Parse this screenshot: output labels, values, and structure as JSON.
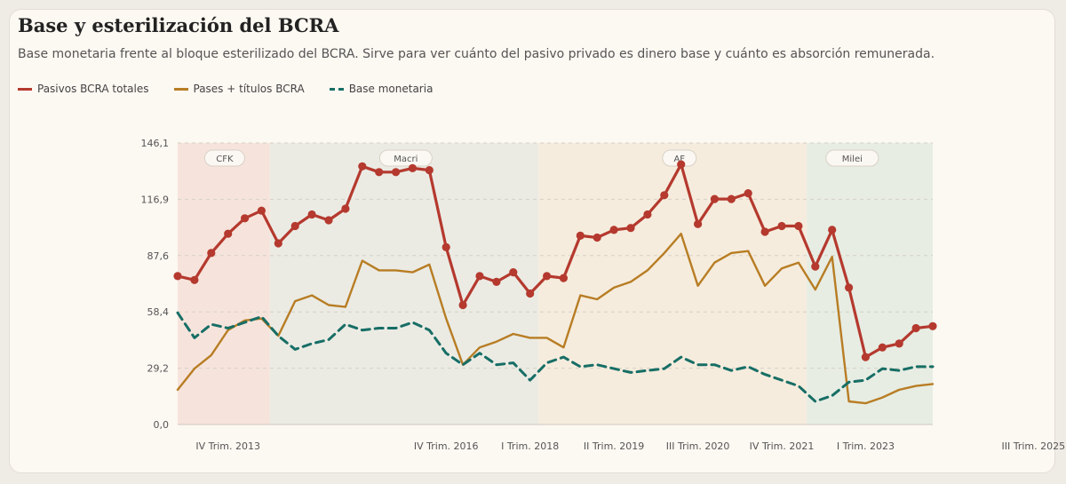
{
  "header": {
    "title": "Base y esterilización del BCRA",
    "subtitle": "Base monetaria frente al bloque esterilizado del BCRA. Sirve para ver cuánto del pasivo privado es dinero base y cuánto es absorción remunerada."
  },
  "legend": [
    {
      "label": "Pasivos BCRA totales",
      "color": "#b5392e",
      "style": "solid"
    },
    {
      "label": "Pases + títulos BCRA",
      "color": "#b87d24",
      "style": "solid"
    },
    {
      "label": "Base monetaria",
      "color": "#176e65",
      "style": "dashed"
    }
  ],
  "chart_data": {
    "type": "line",
    "y_ticks": [
      "0,0",
      "29,2",
      "58,4",
      "87,6",
      "116,9",
      "146,1"
    ],
    "ylim": [
      0,
      146.1
    ],
    "grid": "horizontal-dashed",
    "legend_position": "top-left",
    "x_tick_labels": [
      {
        "index": 3,
        "label": "IV Trim. 2013"
      },
      {
        "index": 16,
        "label": "IV Trim. 2016"
      },
      {
        "index": 21,
        "label": "I Trim. 2018"
      },
      {
        "index": 26,
        "label": "II Trim. 2019"
      },
      {
        "index": 31,
        "label": "III Trim. 2020"
      },
      {
        "index": 36,
        "label": "IV Trim. 2021"
      },
      {
        "index": 41,
        "label": "I Trim. 2023"
      },
      {
        "index": 51,
        "label": "III Trim. 2025"
      }
    ],
    "periods": [
      {
        "label": "CFK",
        "start": 0,
        "end": 5.5,
        "color": "#f6e4dc"
      },
      {
        "label": "Macri",
        "start": 5.5,
        "end": 21.5,
        "color": "#ebebe4"
      },
      {
        "label": "AF",
        "start": 21.5,
        "end": 37.5,
        "color": "#f5ecdd"
      },
      {
        "label": "Milei",
        "start": 37.5,
        "end": 53,
        "color": "#e7ede3"
      }
    ],
    "period_label_positions": [
      2.8,
      13.6,
      29.9,
      40.2
    ],
    "series": [
      {
        "name": "Pasivos BCRA totales",
        "color": "#b5392e",
        "style": "solid",
        "markers": true,
        "values": [
          77,
          75,
          89,
          99,
          107,
          111,
          94,
          103,
          109,
          106,
          112,
          134,
          131,
          131,
          133,
          132,
          92,
          62,
          77,
          74,
          79,
          68,
          77,
          76,
          98,
          97,
          101,
          102,
          109,
          119,
          135,
          104,
          117,
          117,
          120,
          100,
          103,
          103,
          82,
          101,
          71,
          35,
          40,
          42,
          50,
          51
        ]
      },
      {
        "name": "Pases + títulos BCRA",
        "color": "#b87d24",
        "style": "solid",
        "markers": false,
        "values": [
          18,
          29,
          36,
          49,
          54,
          55,
          46,
          64,
          67,
          62,
          61,
          85,
          80,
          80,
          79,
          83,
          55,
          31,
          40,
          43,
          47,
          45,
          45,
          40,
          67,
          65,
          71,
          74,
          80,
          89,
          99,
          72,
          84,
          89,
          90,
          72,
          81,
          84,
          70,
          87,
          12,
          11,
          14,
          18,
          20,
          21
        ]
      },
      {
        "name": "Base monetaria",
        "color": "#176e65",
        "style": "dashed",
        "markers": false,
        "values": [
          58,
          45,
          52,
          50,
          53,
          56,
          46,
          39,
          42,
          44,
          52,
          49,
          50,
          50,
          53,
          49,
          37,
          31,
          37,
          31,
          32,
          23,
          32,
          35,
          30,
          31,
          29,
          27,
          28,
          29,
          35,
          31,
          31,
          28,
          30,
          26,
          23,
          20,
          12,
          15,
          22,
          23,
          29,
          28,
          30,
          30
        ]
      }
    ]
  }
}
